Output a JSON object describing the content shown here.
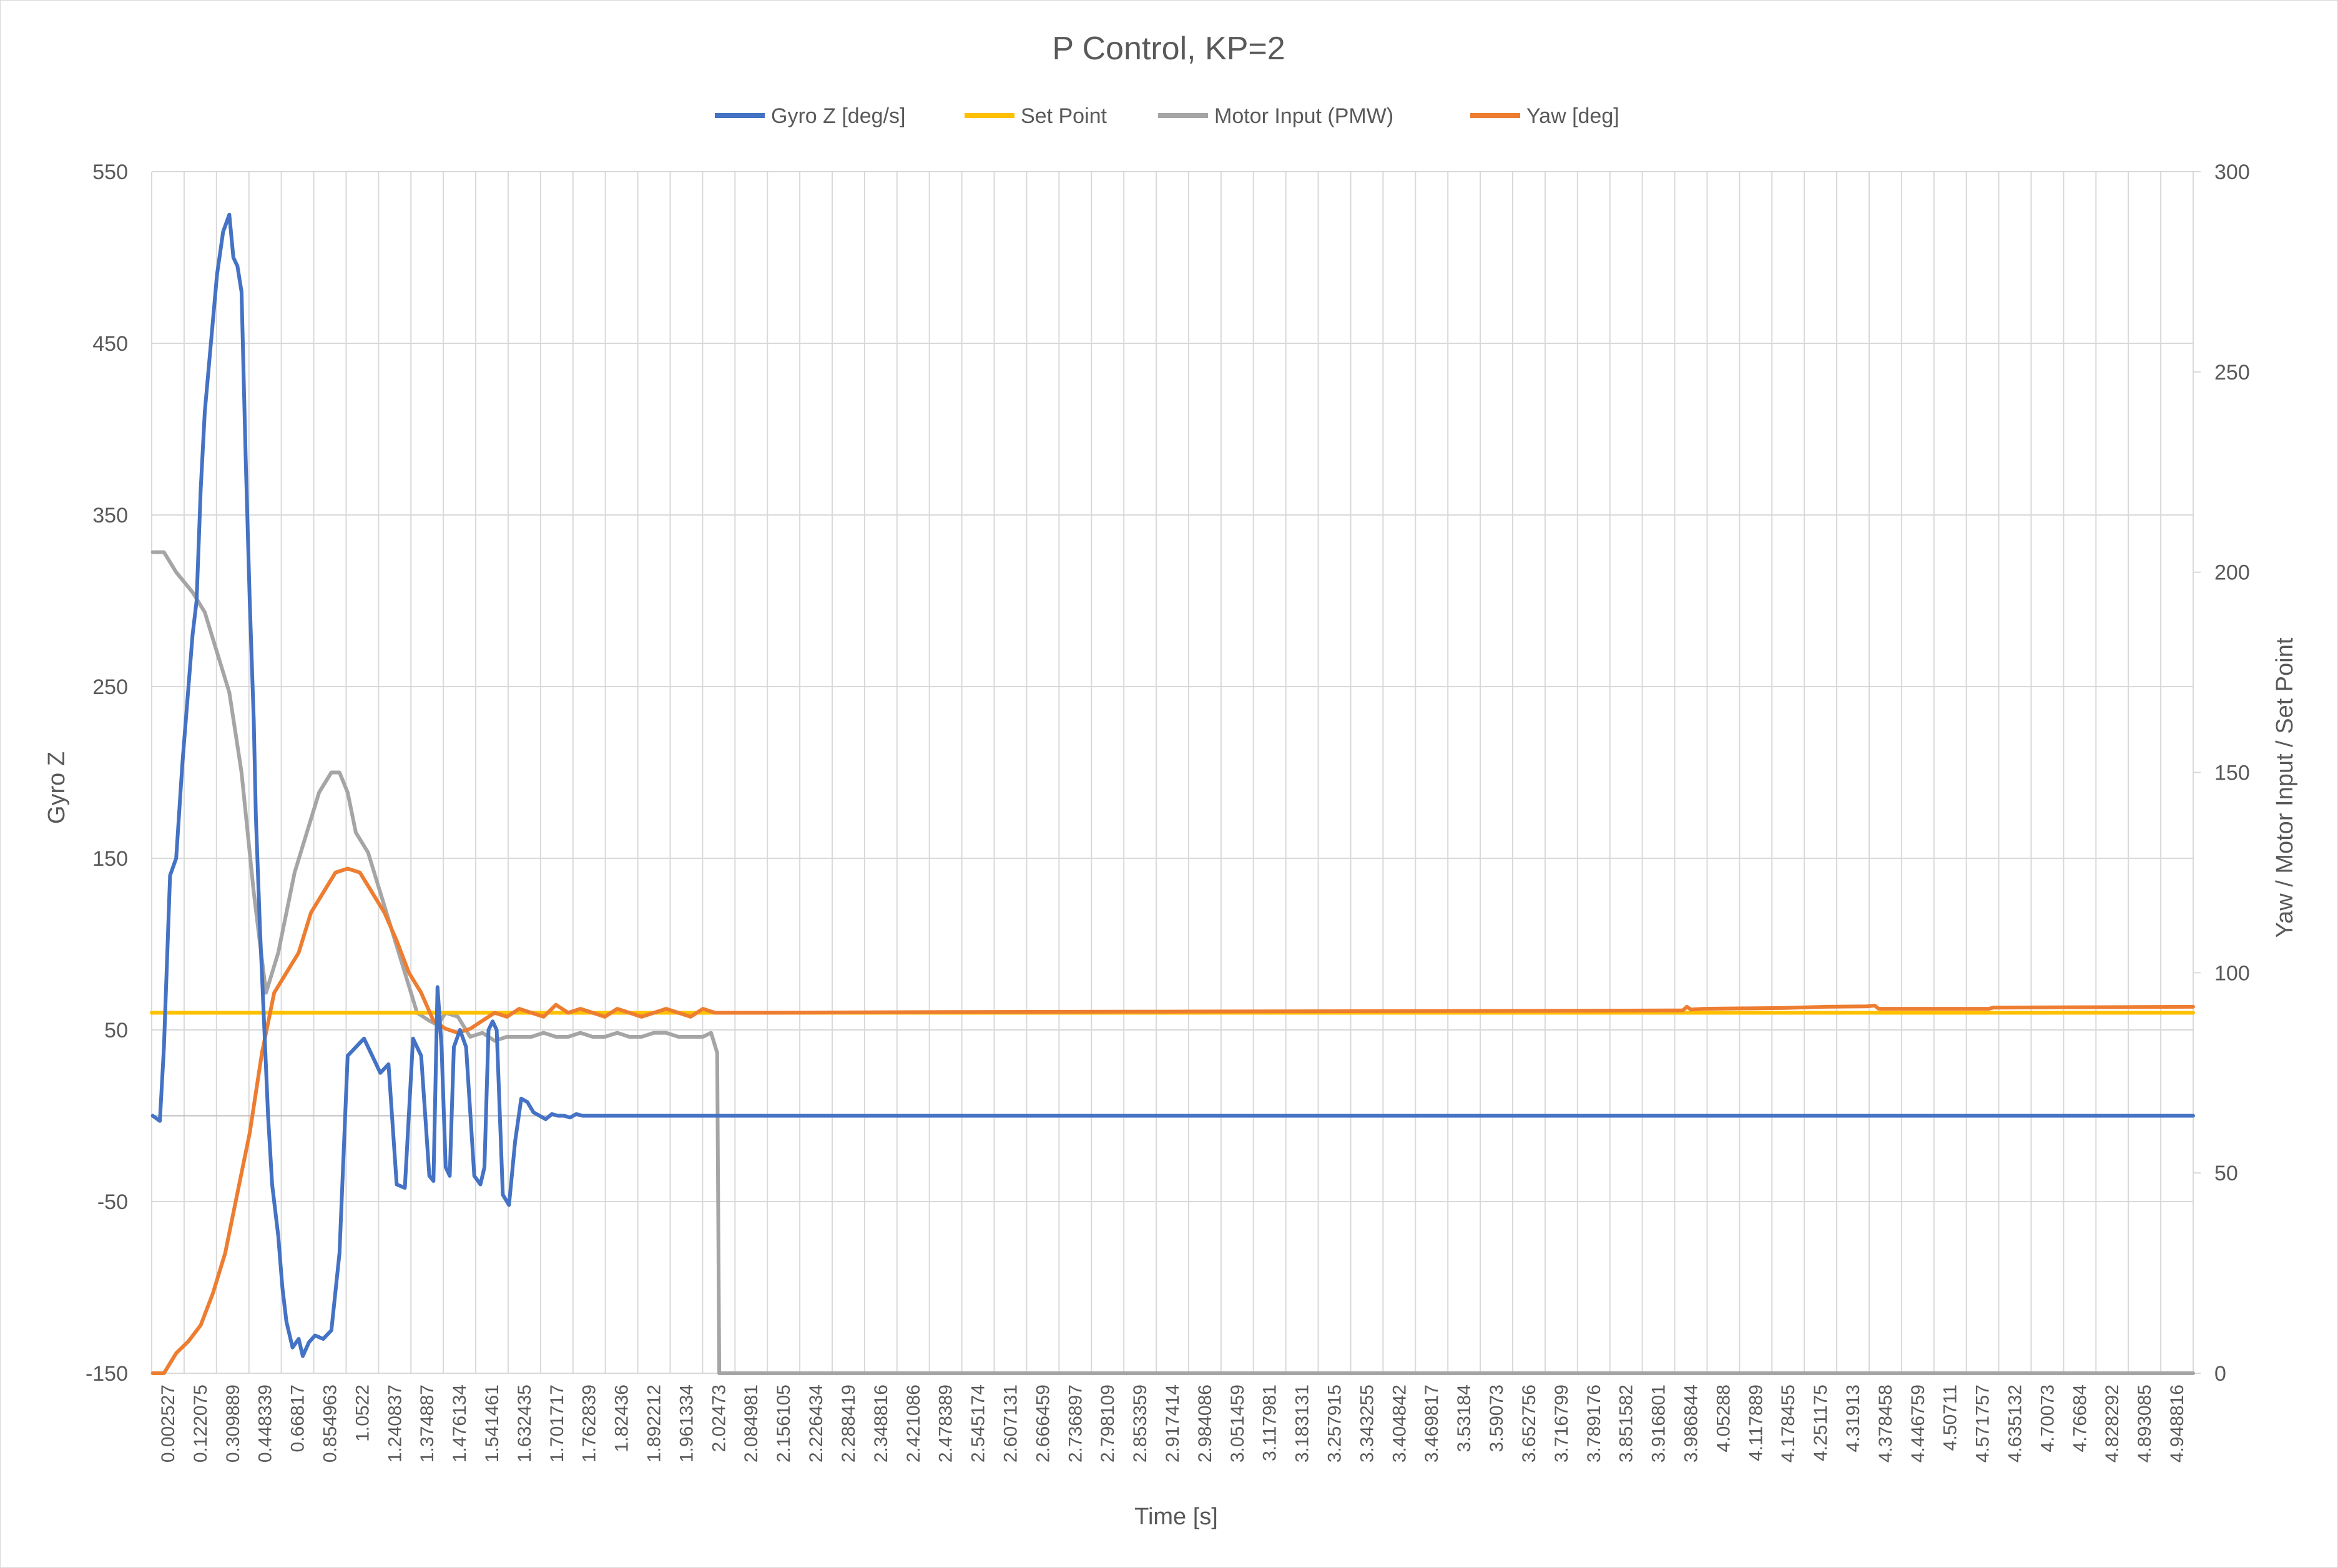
{
  "colors": {
    "gyro": "#4472c4",
    "setpoint": "#ffc000",
    "motor": "#a5a5a5",
    "yaw": "#ed7d31",
    "grid": "#d9d9d9",
    "text": "#595959"
  },
  "chart_data": {
    "type": "line",
    "title": "P Control, KP=2",
    "xlabel": "Time [s]",
    "ylabel_left": "Gyro Z",
    "ylabel_right": "Yaw  / Motor Input / Set Point",
    "legend_position": "top",
    "grid": true,
    "y_left": {
      "min": -150,
      "max": 550,
      "ticks": [
        "550",
        "450",
        "350",
        "250",
        "150",
        "50",
        "-50",
        "-150"
      ]
    },
    "y_right": {
      "min": 0,
      "max": 300,
      "ticks": [
        "300",
        "250",
        "200",
        "150",
        "100",
        "50",
        "0"
      ]
    },
    "x_range": [
      0,
      5
    ],
    "x_tick_labels": [
      "0.002527",
      "0.122075",
      "0.309889",
      "0.448339",
      "0.66817",
      "0.854963",
      "1.0522",
      "1.240837",
      "1.374887",
      "1.476134",
      "1.541461",
      "1.632435",
      "1.701717",
      "1.762839",
      "1.82436",
      "1.892212",
      "1.961334",
      "2.02473",
      "2.084981",
      "2.156105",
      "2.226434",
      "2.288419",
      "2.348816",
      "2.421086",
      "2.478389",
      "2.545174",
      "2.607131",
      "2.666459",
      "2.736897",
      "2.798109",
      "2.853359",
      "2.917414",
      "2.984086",
      "3.051459",
      "3.117981",
      "3.183131",
      "3.257915",
      "3.343255",
      "3.404842",
      "3.469817",
      "3.53184",
      "3.59073",
      "3.652756",
      "3.716799",
      "3.789176",
      "3.851582",
      "3.916801",
      "3.986844",
      "4.05288",
      "4.117889",
      "4.178455",
      "4.251175",
      "4.31913",
      "4.378458",
      "4.446759",
      "4.50711",
      "4.571757",
      "4.635132",
      "4.70073",
      "4.76684",
      "4.828292",
      "4.893085",
      "4.948816"
    ],
    "series": [
      {
        "name": "Gyro Z [deg/s]",
        "axis": "left",
        "color": "#4472c4",
        "x": [
          0.0025,
          0.02,
          0.03,
          0.045,
          0.06,
          0.075,
          0.09,
          0.1,
          0.11,
          0.12,
          0.13,
          0.145,
          0.16,
          0.175,
          0.19,
          0.2,
          0.21,
          0.22,
          0.23,
          0.24,
          0.25,
          0.255,
          0.265,
          0.275,
          0.285,
          0.295,
          0.31,
          0.32,
          0.33,
          0.345,
          0.36,
          0.37,
          0.385,
          0.4,
          0.42,
          0.44,
          0.46,
          0.48,
          0.5,
          0.52,
          0.54,
          0.56,
          0.58,
          0.6,
          0.62,
          0.64,
          0.66,
          0.68,
          0.69,
          0.7,
          0.71,
          0.72,
          0.73,
          0.74,
          0.755,
          0.77,
          0.79,
          0.805,
          0.815,
          0.825,
          0.835,
          0.845,
          0.86,
          0.875,
          0.89,
          0.905,
          0.92,
          0.935,
          0.95,
          0.965,
          0.98,
          0.995,
          1.01,
          1.025,
          1.04,
          1.055,
          1.07,
          1.085,
          1.1,
          1.115,
          1.13,
          1.145,
          1.16,
          1.175,
          1.19,
          1.205,
          1.22,
          1.235,
          1.25,
          1.265,
          1.28,
          1.295,
          1.31,
          1.325,
          1.34,
          1.355,
          1.37,
          1.38,
          1.395,
          1.41,
          1.425,
          1.44,
          1.47,
          1.5,
          1.6,
          2.0,
          2.5,
          3.0,
          3.5,
          4.0,
          4.5,
          4.95,
          5.0
        ],
        "values": [
          0,
          -3,
          40,
          140,
          150,
          205,
          250,
          280,
          300,
          365,
          410,
          450,
          490,
          515,
          525,
          500,
          495,
          480,
          385,
          300,
          230,
          175,
          110,
          55,
          0,
          -40,
          -70,
          -100,
          -120,
          -135,
          -130,
          -140,
          -132,
          -128,
          -130,
          -125,
          -80,
          35,
          40,
          45,
          35,
          25,
          30,
          -40,
          -42,
          45,
          35,
          -35,
          -38,
          75,
          40,
          -30,
          -35,
          40,
          50,
          40,
          -35,
          -40,
          -30,
          50,
          55,
          50,
          -46,
          -52,
          -15,
          10,
          8,
          2,
          0,
          -2,
          1,
          0,
          0,
          -1,
          1,
          0,
          0,
          0,
          0,
          0,
          0,
          0,
          0,
          0,
          0,
          0,
          0,
          0,
          0,
          0,
          0,
          0,
          0,
          0,
          0,
          0,
          0,
          0,
          0,
          0,
          0,
          0,
          0,
          0,
          0,
          0,
          0,
          0,
          0,
          0,
          0,
          0,
          0
        ]
      },
      {
        "name": "Set Point",
        "axis": "right",
        "color": "#ffc000",
        "x": [
          0,
          5
        ],
        "values": [
          90,
          90
        ]
      },
      {
        "name": "Motor Input (PMW)",
        "axis": "right",
        "color": "#a5a5a5",
        "x": [
          0.0025,
          0.03,
          0.06,
          0.1,
          0.13,
          0.16,
          0.19,
          0.22,
          0.25,
          0.28,
          0.31,
          0.33,
          0.35,
          0.38,
          0.41,
          0.44,
          0.46,
          0.48,
          0.5,
          0.53,
          0.56,
          0.59,
          0.62,
          0.65,
          0.68,
          0.7,
          0.72,
          0.75,
          0.78,
          0.81,
          0.84,
          0.87,
          0.9,
          0.93,
          0.96,
          0.99,
          1.02,
          1.05,
          1.08,
          1.11,
          1.14,
          1.17,
          1.2,
          1.23,
          1.26,
          1.29,
          1.32,
          1.35,
          1.37,
          1.385,
          1.39,
          1.5,
          2.0,
          3.0,
          4.0,
          5.0
        ],
        "values": [
          205,
          205,
          200,
          195,
          190,
          180,
          170,
          150,
          120,
          95,
          105,
          115,
          125,
          135,
          145,
          150,
          150,
          145,
          135,
          130,
          120,
          110,
          100,
          90,
          88,
          87,
          90,
          89,
          84,
          85,
          83,
          84,
          84,
          84,
          85,
          84,
          84,
          85,
          84,
          84,
          85,
          84,
          84,
          85,
          85,
          84,
          84,
          84,
          85,
          80,
          0,
          0,
          0,
          0,
          0,
          0
        ]
      },
      {
        "name": "Yaw [deg]",
        "axis": "right",
        "color": "#ed7d31",
        "x": [
          0.0025,
          0.03,
          0.06,
          0.09,
          0.12,
          0.15,
          0.18,
          0.21,
          0.24,
          0.27,
          0.3,
          0.33,
          0.36,
          0.39,
          0.42,
          0.45,
          0.48,
          0.51,
          0.54,
          0.57,
          0.6,
          0.63,
          0.66,
          0.69,
          0.72,
          0.75,
          0.78,
          0.81,
          0.84,
          0.87,
          0.9,
          0.93,
          0.96,
          0.99,
          1.02,
          1.05,
          1.08,
          1.11,
          1.14,
          1.17,
          1.2,
          1.23,
          1.26,
          1.29,
          1.32,
          1.35,
          1.38,
          1.41,
          1.44,
          1.5,
          2.0,
          2.5,
          3.0,
          3.5,
          3.75,
          3.76,
          3.77,
          3.8,
          4.0,
          4.1,
          4.2,
          4.22,
          4.23,
          4.5,
          4.51,
          4.8,
          5.0
        ],
        "values": [
          0,
          0,
          5,
          8,
          12,
          20,
          30,
          45,
          60,
          80,
          95,
          100,
          105,
          115,
          120,
          125,
          126,
          125,
          120,
          115,
          108,
          100,
          95,
          88,
          86,
          85,
          86,
          88,
          90,
          89,
          91,
          90,
          89,
          92,
          90,
          91,
          90,
          89,
          91,
          90,
          89,
          90,
          91,
          90,
          89,
          91,
          90,
          90,
          90,
          90,
          90.2,
          90.3,
          90.4,
          90.5,
          90.6,
          91.5,
          90.8,
          91,
          91.2,
          91.5,
          91.6,
          91.8,
          91,
          91,
          91.3,
          91.4,
          91.5
        ]
      }
    ]
  }
}
